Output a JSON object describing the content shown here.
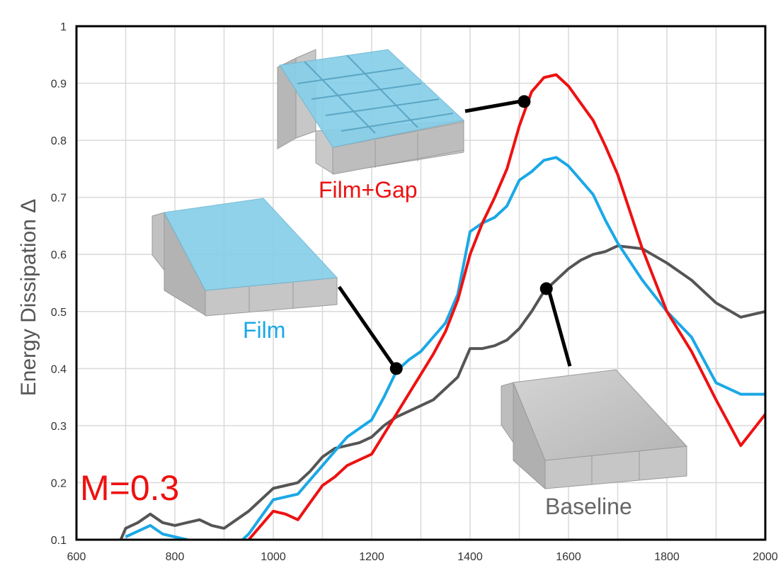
{
  "chart_data": {
    "type": "line",
    "title": "",
    "xlabel": "",
    "ylabel": "Energy Dissipation Δ",
    "xlim": [
      600,
      2000
    ],
    "ylim": [
      0.1,
      1
    ],
    "x_ticks": [
      "600",
      "800",
      "1000",
      "1200",
      "1400",
      "1600",
      "1800",
      "2000"
    ],
    "y_ticks": [
      "0.1",
      "0.2",
      "0.3",
      "0.4",
      "0.5",
      "0.6",
      "0.7",
      "0.8",
      "0.9",
      "1"
    ],
    "grid": true,
    "series": [
      {
        "name": "Baseline",
        "color": "#555555",
        "x": [
          690,
          700,
          725,
          750,
          775,
          800,
          825,
          850,
          875,
          900,
          925,
          950,
          975,
          1000,
          1025,
          1050,
          1075,
          1100,
          1125,
          1150,
          1175,
          1200,
          1225,
          1250,
          1275,
          1300,
          1325,
          1350,
          1375,
          1400,
          1425,
          1450,
          1475,
          1500,
          1525,
          1550,
          1575,
          1600,
          1625,
          1650,
          1675,
          1700,
          1750,
          1800,
          1850,
          1900,
          1950,
          2000
        ],
        "y": [
          0.1,
          0.12,
          0.13,
          0.145,
          0.13,
          0.125,
          0.13,
          0.135,
          0.125,
          0.12,
          0.135,
          0.15,
          0.17,
          0.19,
          0.195,
          0.2,
          0.22,
          0.245,
          0.26,
          0.265,
          0.27,
          0.28,
          0.3,
          0.315,
          0.325,
          0.335,
          0.345,
          0.365,
          0.385,
          0.435,
          0.435,
          0.44,
          0.45,
          0.47,
          0.5,
          0.535,
          0.555,
          0.575,
          0.59,
          0.6,
          0.605,
          0.615,
          0.61,
          0.585,
          0.555,
          0.515,
          0.49,
          0.5
        ]
      },
      {
        "name": "Film",
        "color": "#1aa8e6",
        "x": [
          700,
          725,
          750,
          775,
          800,
          825,
          850,
          875,
          900,
          925,
          950,
          975,
          1000,
          1025,
          1050,
          1075,
          1100,
          1125,
          1150,
          1175,
          1200,
          1225,
          1250,
          1275,
          1300,
          1325,
          1350,
          1375,
          1400,
          1425,
          1450,
          1475,
          1500,
          1525,
          1550,
          1575,
          1600,
          1625,
          1650,
          1675,
          1700,
          1750,
          1800,
          1850,
          1900,
          1950,
          2000
        ],
        "y": [
          0.105,
          0.115,
          0.125,
          0.11,
          0.105,
          0.1,
          0.095,
          0.09,
          0.085,
          0.09,
          0.11,
          0.14,
          0.17,
          0.175,
          0.18,
          0.205,
          0.23,
          0.255,
          0.28,
          0.295,
          0.31,
          0.35,
          0.395,
          0.415,
          0.43,
          0.455,
          0.48,
          0.53,
          0.64,
          0.655,
          0.665,
          0.685,
          0.73,
          0.745,
          0.765,
          0.77,
          0.755,
          0.73,
          0.705,
          0.66,
          0.62,
          0.555,
          0.5,
          0.455,
          0.375,
          0.355,
          0.355
        ]
      },
      {
        "name": "Film+Gap",
        "color": "#ee1111",
        "x": [
          950,
          975,
          1000,
          1025,
          1050,
          1075,
          1100,
          1125,
          1150,
          1175,
          1200,
          1225,
          1250,
          1275,
          1300,
          1325,
          1350,
          1375,
          1400,
          1425,
          1450,
          1475,
          1500,
          1525,
          1550,
          1575,
          1600,
          1625,
          1650,
          1675,
          1700,
          1725,
          1750,
          1800,
          1850,
          1900,
          1950,
          2000
        ],
        "y": [
          0.1,
          0.125,
          0.15,
          0.145,
          0.135,
          0.165,
          0.195,
          0.21,
          0.23,
          0.24,
          0.25,
          0.285,
          0.32,
          0.355,
          0.39,
          0.425,
          0.465,
          0.52,
          0.6,
          0.655,
          0.7,
          0.75,
          0.825,
          0.885,
          0.91,
          0.915,
          0.895,
          0.865,
          0.835,
          0.79,
          0.74,
          0.675,
          0.61,
          0.5,
          0.43,
          0.345,
          0.265,
          0.32
        ]
      }
    ]
  },
  "annotations": {
    "film_gap": {
      "label": "Film+Gap",
      "color": "#ee1111",
      "x": 1510,
      "y": 0.868
    },
    "film": {
      "label": "Film",
      "color": "#1aa8e6",
      "x": 1250,
      "y": 0.4
    },
    "baseline": {
      "label": "Baseline",
      "color": "#666666",
      "x": 1555,
      "y": 0.54
    },
    "mach": {
      "label": "M=0.3",
      "color": "#ee1111"
    }
  }
}
